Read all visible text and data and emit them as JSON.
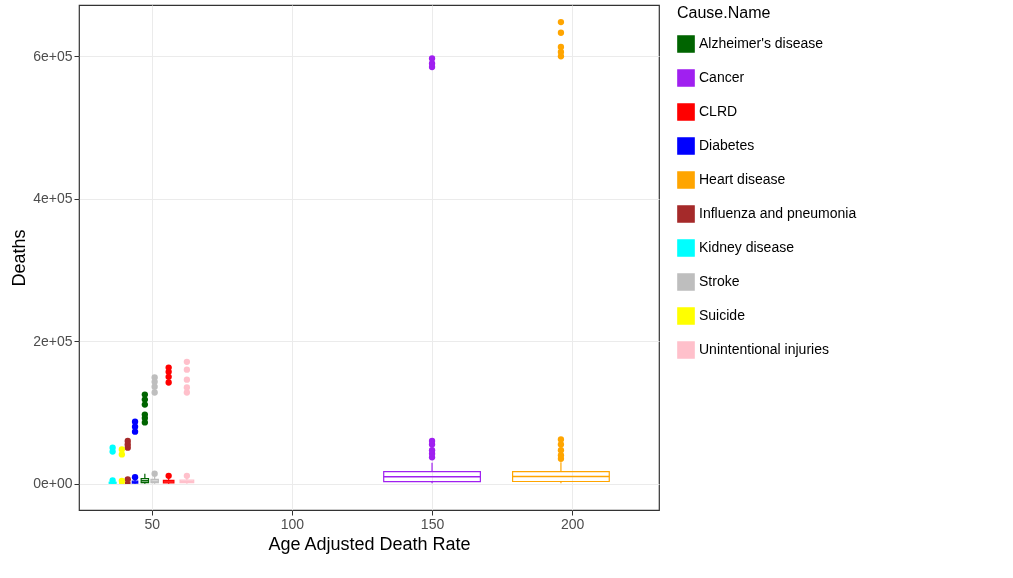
{
  "chart_data": {
    "type": "box",
    "xlabel": "Age Adjusted Death Rate",
    "ylabel": "Deaths",
    "legend_title": "Cause.Name",
    "legend": "right",
    "grid": true,
    "xlim": [
      24,
      231
    ],
    "xticks": [
      50,
      100,
      150,
      200
    ],
    "ylim": [
      -37000,
      672000
    ],
    "yticks": [
      {
        "value": 0,
        "label": "0e+00"
      },
      {
        "value": 200000,
        "label": "2e+05"
      },
      {
        "value": 400000,
        "label": "4e+05"
      },
      {
        "value": 600000,
        "label": "6e+05"
      }
    ],
    "series": [
      {
        "name": "Alzheimer's disease",
        "color": "#006400",
        "x": [
          47.5
        ],
        "boxes": [
          {
            "low": 0,
            "q1": 1500,
            "median": 4000,
            "q3": 7000,
            "high": 14000,
            "outliers": [
              86000,
              92000,
              97000,
              111000,
              118000,
              125000
            ]
          }
        ]
      },
      {
        "name": "Cancer",
        "color": "#a020f0",
        "x": [
          150
        ],
        "boxes": [
          {
            "low": 500,
            "q1": 2800,
            "median": 9800,
            "q3": 16900,
            "high": 29500,
            "outliers": [
              37000,
              42000,
              47000,
              55000,
              60000,
              585000,
              590000,
              597000
            ]
          }
        ]
      },
      {
        "name": "CLRD",
        "color": "#ff0000",
        "x": [
          56
        ],
        "boxes": [
          {
            "low": 0,
            "q1": 1000,
            "median": 2500,
            "q3": 4500,
            "high": 9000,
            "outliers": [
              11000,
              142000,
              150000,
              157000,
              163000
            ]
          }
        ]
      },
      {
        "name": "Diabetes",
        "color": "#0000ff",
        "x": [
          44
        ],
        "boxes": [
          {
            "low": 0,
            "q1": 800,
            "median": 2000,
            "q3": 3500,
            "high": 7000,
            "outliers": [
              9000,
              73000,
              80000,
              87000
            ]
          }
        ]
      },
      {
        "name": "Heart disease",
        "color": "#ffa500",
        "x": [
          196
        ],
        "boxes": [
          {
            "low": 500,
            "q1": 3000,
            "median": 10000,
            "q3": 17000,
            "high": 30000,
            "outliers": [
              35000,
              40000,
              47000,
              55000,
              62000,
              600000,
              606000,
              613000,
              633000,
              648000
            ]
          }
        ]
      },
      {
        "name": "Influenza and pneumonia",
        "color": "#a52a2a",
        "x": [
          41.4
        ],
        "boxes": [
          {
            "low": 0,
            "q1": 500,
            "median": 1200,
            "q3": 2200,
            "high": 4500,
            "outliers": [
              6000,
              50500,
              55000,
              60000
            ]
          }
        ]
      },
      {
        "name": "Kidney disease",
        "color": "#00ffff",
        "x": [
          36
        ],
        "boxes": [
          {
            "low": 0,
            "q1": 500,
            "median": 1200,
            "q3": 2000,
            "high": 4000,
            "outliers": [
              4500,
              45000,
              50500
            ]
          }
        ]
      },
      {
        "name": "Stroke",
        "color": "#bebebe",
        "x": [
          51
        ],
        "boxes": [
          {
            "low": 0,
            "q1": 1500,
            "median": 3500,
            "q3": 6000,
            "high": 12000,
            "outliers": [
              14000,
              128000,
              136000,
              143000,
              149000
            ]
          }
        ]
      },
      {
        "name": "Suicide",
        "color": "#ffff00",
        "x": [
          39.3
        ],
        "boxes": [
          {
            "low": 0,
            "q1": 500,
            "median": 1000,
            "q3": 1800,
            "high": 3500,
            "outliers": [
              4000,
              41000,
              48000
            ]
          }
        ]
      },
      {
        "name": "Unintentional injuries",
        "color": "#ffc0cb",
        "x": [
          62.5
        ],
        "boxes": [
          {
            "low": 0,
            "q1": 1500,
            "median": 3000,
            "q3": 5000,
            "high": 9000,
            "outliers": [
              11000,
              128000,
              135000,
              146000,
              160000,
              171000
            ]
          }
        ]
      }
    ]
  }
}
